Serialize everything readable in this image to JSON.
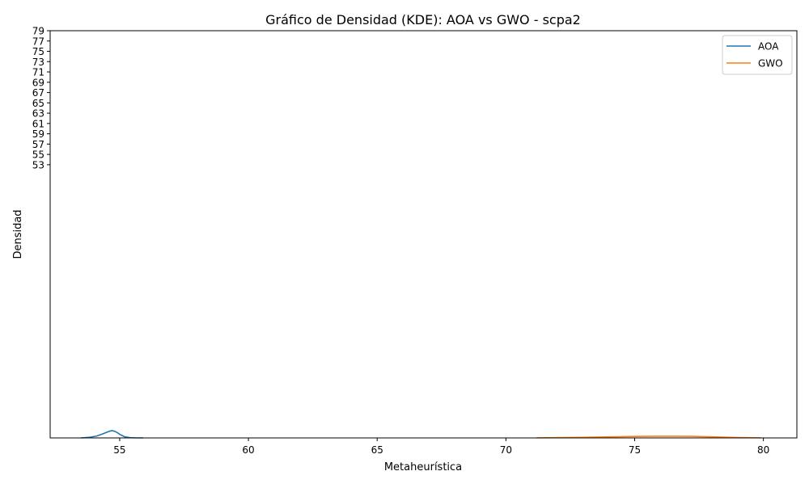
{
  "chart_data": {
    "type": "line",
    "title": "Gráfico de Densidad (KDE): AOA vs GWO - scpa2",
    "xlabel": "Metaheurística",
    "ylabel": "Densidad",
    "xlim": [
      52.3,
      81.3
    ],
    "ylim": [
      0,
      79
    ],
    "x_ticks": [
      55,
      60,
      65,
      70,
      75,
      80
    ],
    "y_ticks": [
      53,
      55,
      57,
      59,
      61,
      63,
      65,
      67,
      69,
      71,
      73,
      75,
      77,
      79
    ],
    "grid": false,
    "legend_position": "top-right",
    "series": [
      {
        "name": "AOA",
        "color": "#1f77b4",
        "x": [
          53.5,
          53.8,
          54.1,
          54.3,
          54.5,
          54.6,
          54.7,
          54.8,
          54.9,
          55.0,
          55.1,
          55.2,
          55.4,
          55.6,
          55.9
        ],
        "y": [
          0.0,
          0.1,
          0.35,
          0.7,
          1.1,
          1.3,
          1.4,
          1.3,
          1.05,
          0.7,
          0.45,
          0.2,
          0.06,
          0.02,
          0.0
        ]
      },
      {
        "name": "GWO",
        "color": "#ff7f0e",
        "x": [
          71.2,
          72.0,
          73.0,
          74.0,
          75.0,
          75.8,
          76.5,
          77.2,
          78.0,
          79.0,
          79.9
        ],
        "y": [
          0.02,
          0.05,
          0.1,
          0.2,
          0.28,
          0.32,
          0.33,
          0.3,
          0.2,
          0.08,
          0.02
        ]
      }
    ]
  }
}
